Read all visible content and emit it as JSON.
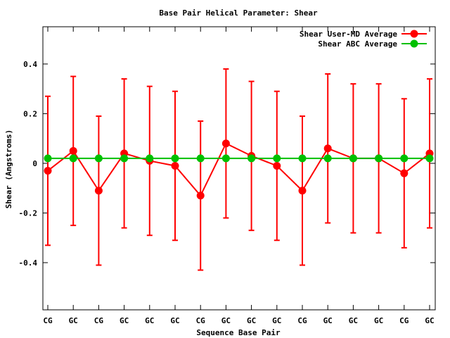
{
  "chart_data": {
    "type": "line",
    "title": "Base Pair Helical Parameter: Shear",
    "xlabel": "Sequence Base Pair",
    "ylabel": "Shear (Angstroms)",
    "categories": [
      "CG",
      "GC",
      "CG",
      "GC",
      "GC",
      "GC",
      "CG",
      "GC",
      "GC",
      "GC",
      "CG",
      "GC",
      "GC",
      "GC",
      "CG",
      "GC"
    ],
    "y_ticks": [
      {
        "value": 0.4,
        "label": "0.4"
      },
      {
        "value": 0.2,
        "label": "0.2"
      },
      {
        "value": 0,
        "label": "0"
      },
      {
        "value": -0.2,
        "label": "-0.2"
      },
      {
        "value": -0.4,
        "label": "-0.4"
      }
    ],
    "ylim": [
      -0.59,
      0.55
    ],
    "legend_position": "top-right",
    "grid": false,
    "series": [
      {
        "name": "Shear User-MD Average",
        "color": "#ff0000",
        "values": [
          -0.03,
          0.05,
          -0.11,
          0.04,
          0.01,
          -0.01,
          -0.13,
          0.08,
          0.03,
          -0.01,
          -0.11,
          0.06,
          0.02,
          0.02,
          -0.04,
          0.04
        ],
        "error_low": [
          -0.33,
          -0.25,
          -0.41,
          -0.26,
          -0.29,
          -0.31,
          -0.43,
          -0.22,
          -0.27,
          -0.31,
          -0.41,
          -0.24,
          -0.28,
          -0.28,
          -0.34,
          -0.26
        ],
        "error_high": [
          0.27,
          0.35,
          0.19,
          0.34,
          0.31,
          0.29,
          0.17,
          0.38,
          0.33,
          0.29,
          0.19,
          0.36,
          0.32,
          0.32,
          0.26,
          0.34
        ]
      },
      {
        "name": "Shear ABC Average",
        "color": "#00c000",
        "values": [
          0.02,
          0.02,
          0.02,
          0.02,
          0.02,
          0.02,
          0.02,
          0.02,
          0.02,
          0.02,
          0.02,
          0.02,
          0.02,
          0.02,
          0.02,
          0.02
        ]
      }
    ]
  }
}
